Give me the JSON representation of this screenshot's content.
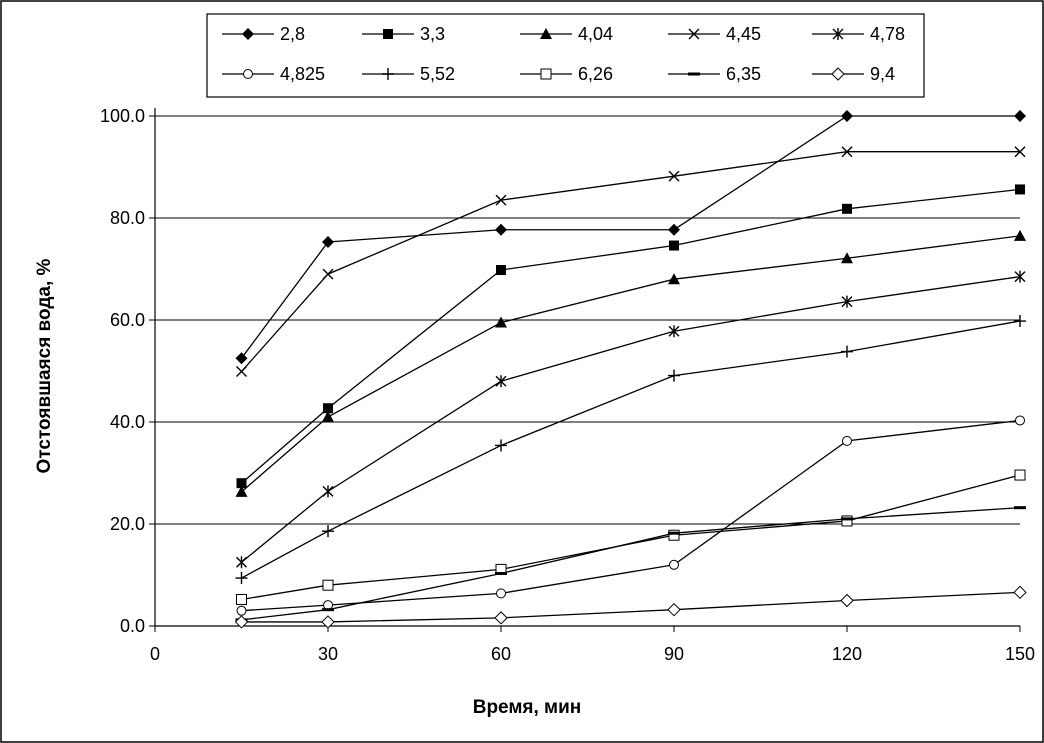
{
  "chart_data": {
    "type": "line",
    "title": "",
    "xlabel": "Время, мин",
    "ylabel": "Отстоявшаяся вода, %",
    "xlim": [
      0,
      150
    ],
    "ylim": [
      0,
      100
    ],
    "x_ticks": [
      "0",
      "30",
      "60",
      "90",
      "120",
      "150"
    ],
    "y_ticks": [
      "0.0",
      "20.0",
      "40.0",
      "60.0",
      "80.0",
      "100.0"
    ],
    "grid": "horizontal",
    "legend_position": "top",
    "x": [
      15,
      30,
      60,
      90,
      120,
      150
    ],
    "series": [
      {
        "name": "2,8",
        "marker": "diamond-filled",
        "values": [
          52.5,
          75.3,
          77.7,
          77.7,
          100.0,
          100.0
        ]
      },
      {
        "name": "3,3",
        "marker": "square-filled",
        "values": [
          28.0,
          42.7,
          69.8,
          74.6,
          81.8,
          85.6
        ]
      },
      {
        "name": "4,04",
        "marker": "triangle-filled",
        "values": [
          26.3,
          41.0,
          59.5,
          68.0,
          72.1,
          76.5
        ]
      },
      {
        "name": "4,45",
        "marker": "x",
        "values": [
          49.9,
          69.0,
          83.5,
          88.2,
          93.0,
          93.0
        ]
      },
      {
        "name": "4,78",
        "marker": "asterisk",
        "values": [
          12.5,
          26.4,
          48.0,
          57.8,
          63.6,
          68.5
        ]
      },
      {
        "name": "4,825",
        "marker": "circle-open",
        "values": [
          3.0,
          4.1,
          6.4,
          12.0,
          36.3,
          40.3
        ]
      },
      {
        "name": "5,52",
        "marker": "plus",
        "values": [
          9.4,
          18.6,
          35.4,
          49.1,
          53.8,
          59.8
        ]
      },
      {
        "name": "6,26",
        "marker": "square-open",
        "values": [
          5.2,
          8.0,
          11.1,
          17.8,
          20.6,
          29.6
        ]
      },
      {
        "name": "6,35",
        "marker": "dash",
        "values": [
          1.2,
          3.2,
          10.3,
          18.2,
          21.0,
          23.2
        ]
      },
      {
        "name": "9,4",
        "marker": "diamond-open",
        "values": [
          0.8,
          0.8,
          1.6,
          3.2,
          5.0,
          6.6
        ]
      }
    ]
  }
}
